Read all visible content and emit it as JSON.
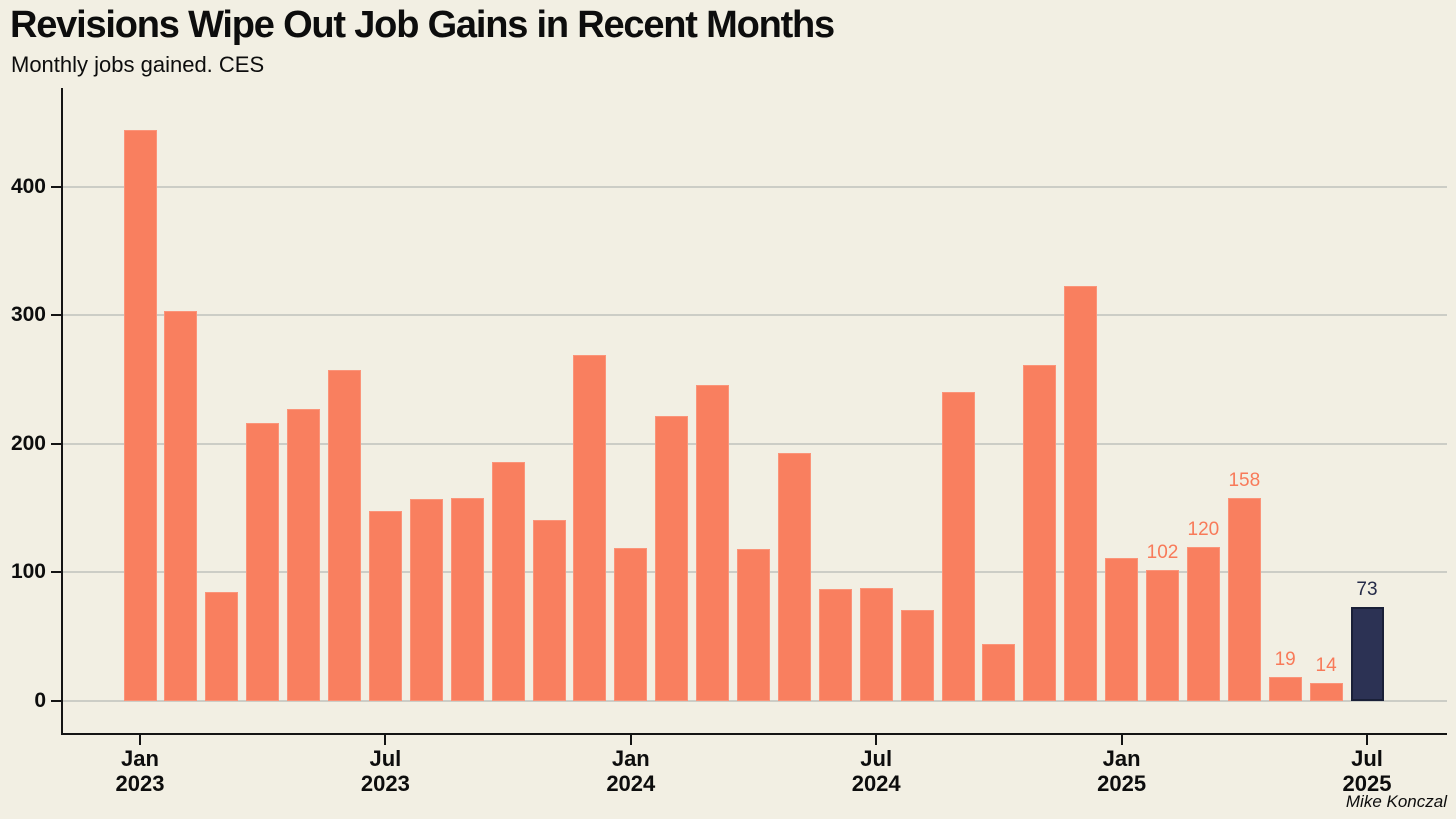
{
  "header": {
    "title": "Revisions Wipe Out Job Gains in Recent Months",
    "subtitle": "Monthly jobs gained. CES"
  },
  "attribution": "Mike Konczal",
  "colors": {
    "background": "#F2EFE3",
    "bar": "#F97F5F",
    "bar_top_edge": "#FB9479",
    "highlight_bar": "#2C3254",
    "highlight_bar_border": "#1A2038",
    "grid": "#CCCDC6",
    "axis": "#141414",
    "text": "#0D0D0D",
    "value_label": "#F87A59",
    "value_label_highlight": "#252B49"
  },
  "chart_data": {
    "type": "bar",
    "title": "Revisions Wipe Out Job Gains in Recent Months",
    "subtitle": "Monthly jobs gained. CES",
    "ylabel": "",
    "xlabel": "",
    "ylim": [
      0,
      475
    ],
    "yticks": [
      0,
      100,
      200,
      300,
      400
    ],
    "grid": true,
    "legend": false,
    "months": [
      {
        "month": "Jan",
        "year": 2023,
        "value": 444
      },
      {
        "month": "Feb",
        "year": 2023,
        "value": 303
      },
      {
        "month": "Mar",
        "year": 2023,
        "value": 85
      },
      {
        "month": "Apr",
        "year": 2023,
        "value": 216
      },
      {
        "month": "May",
        "year": 2023,
        "value": 227
      },
      {
        "month": "Jun",
        "year": 2023,
        "value": 257
      },
      {
        "month": "Jul",
        "year": 2023,
        "value": 148
      },
      {
        "month": "Aug",
        "year": 2023,
        "value": 157
      },
      {
        "month": "Sep",
        "year": 2023,
        "value": 158
      },
      {
        "month": "Oct",
        "year": 2023,
        "value": 186
      },
      {
        "month": "Nov",
        "year": 2023,
        "value": 141
      },
      {
        "month": "Dec",
        "year": 2023,
        "value": 269
      },
      {
        "month": "Jan",
        "year": 2024,
        "value": 119
      },
      {
        "month": "Feb",
        "year": 2024,
        "value": 222
      },
      {
        "month": "Mar",
        "year": 2024,
        "value": 246
      },
      {
        "month": "Apr",
        "year": 2024,
        "value": 118
      },
      {
        "month": "May",
        "year": 2024,
        "value": 193
      },
      {
        "month": "Jun",
        "year": 2024,
        "value": 87
      },
      {
        "month": "Jul",
        "year": 2024,
        "value": 88
      },
      {
        "month": "Aug",
        "year": 2024,
        "value": 71
      },
      {
        "month": "Sep",
        "year": 2024,
        "value": 240
      },
      {
        "month": "Oct",
        "year": 2024,
        "value": 44
      },
      {
        "month": "Nov",
        "year": 2024,
        "value": 261
      },
      {
        "month": "Dec",
        "year": 2024,
        "value": 323
      },
      {
        "month": "Jan",
        "year": 2025,
        "value": 111
      },
      {
        "month": "Feb",
        "year": 2025,
        "value": 102,
        "bar_label": "102"
      },
      {
        "month": "Mar",
        "year": 2025,
        "value": 120,
        "bar_label": "120"
      },
      {
        "month": "Apr",
        "year": 2025,
        "value": 158,
        "bar_label": "158"
      },
      {
        "month": "May",
        "year": 2025,
        "value": 19,
        "bar_label": "19"
      },
      {
        "month": "Jun",
        "year": 2025,
        "value": 14,
        "bar_label": "14"
      },
      {
        "month": "Jul",
        "year": 2025,
        "value": 73,
        "bar_label": "73",
        "highlight": true
      }
    ],
    "xticks": [
      {
        "month_index": 0,
        "line1": "Jan",
        "line2": "2023"
      },
      {
        "month_index": 6,
        "line1": "Jul",
        "line2": "2023"
      },
      {
        "month_index": 12,
        "line1": "Jan",
        "line2": "2024"
      },
      {
        "month_index": 18,
        "line1": "Jul",
        "line2": "2024"
      },
      {
        "month_index": 24,
        "line1": "Jan",
        "line2": "2025"
      },
      {
        "month_index": 30,
        "line1": "Jul",
        "line2": "2025"
      }
    ]
  }
}
